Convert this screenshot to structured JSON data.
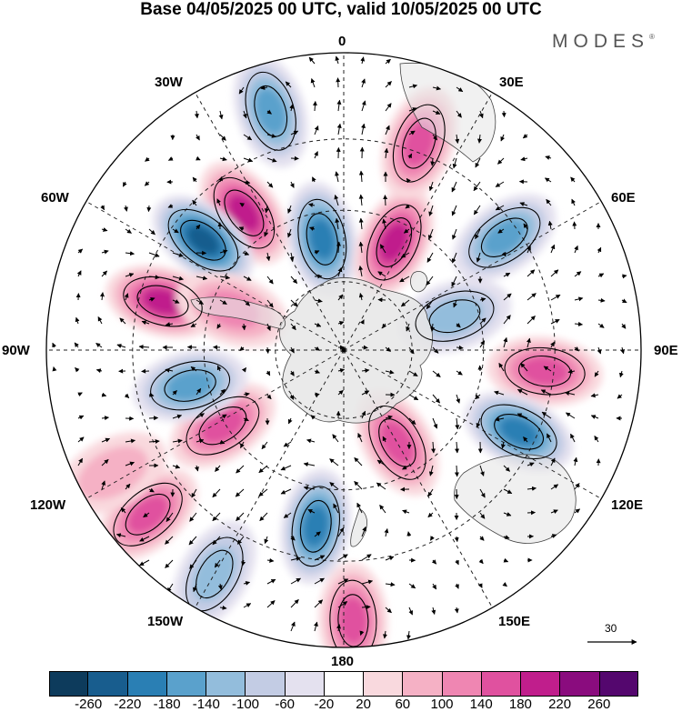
{
  "title": "Base 04/05/2025 00 UTC, valid 10/05/2025 00 UTC",
  "brand": "MODES",
  "brand_mark": "®",
  "longitude_labels": {
    "top": "0",
    "bottom": "180",
    "left": "90W",
    "right": "90E",
    "w30": "30W",
    "e30": "30E",
    "w60": "60W",
    "e60": "60E",
    "w120": "120W",
    "e120": "120E",
    "w150": "150W",
    "e150": "150E"
  },
  "reference_vector": {
    "label": "30"
  },
  "colorbar": {
    "ticks": [
      "-260",
      "-220",
      "-180",
      "-140",
      "-100",
      "-60",
      "-20",
      "20",
      "60",
      "100",
      "140",
      "180",
      "220",
      "260"
    ],
    "colors": [
      "#0d3b5c",
      "#185d8e",
      "#2a7fb4",
      "#5aa1cc",
      "#93bddc",
      "#c3cce4",
      "#e4e1ef",
      "#ffffff",
      "#f9d9de",
      "#f5b1c5",
      "#ef86b2",
      "#e0519f",
      "#c01e8c",
      "#8a0c7e",
      "#54076e"
    ]
  },
  "anomaly_centers": [
    {
      "lon": -17,
      "lat_frac": 0.84,
      "level": -140
    },
    {
      "lon": -36,
      "lat_frac": 0.57,
      "level": 160
    },
    {
      "lon": -11,
      "lat_frac": 0.38,
      "level": -180
    },
    {
      "lon": -52,
      "lat_frac": 0.6,
      "level": -200
    },
    {
      "lon": 25,
      "lat_frac": 0.4,
      "level": 180
    },
    {
      "lon": 20,
      "lat_frac": 0.74,
      "level": 120
    },
    {
      "lon": 55,
      "lat_frac": 0.66,
      "level": -120
    },
    {
      "lon": 73,
      "lat_frac": 0.39,
      "level": -100
    },
    {
      "lon": 96,
      "lat_frac": 0.68,
      "level": 140
    },
    {
      "lon": 115,
      "lat_frac": 0.65,
      "level": -180
    },
    {
      "lon": 150,
      "lat_frac": 0.36,
      "level": 140
    },
    {
      "lon": -171,
      "lat_frac": 0.6,
      "level": -160
    },
    {
      "lon": 178,
      "lat_frac": 0.91,
      "level": 140
    },
    {
      "lon": -150,
      "lat_frac": 0.87,
      "level": -100
    },
    {
      "lon": -130,
      "lat_frac": 0.86,
      "level": 140
    },
    {
      "lon": -122,
      "lat_frac": 0.48,
      "level": 140
    },
    {
      "lon": -103,
      "lat_frac": 0.53,
      "level": -120
    },
    {
      "lon": -75,
      "lat_frac": 0.63,
      "level": 160
    },
    {
      "lon": -70,
      "lat_frac": 0.4,
      "level": 80
    },
    {
      "lon": -118,
      "lat_frac": 0.88,
      "level": 40
    }
  ]
}
